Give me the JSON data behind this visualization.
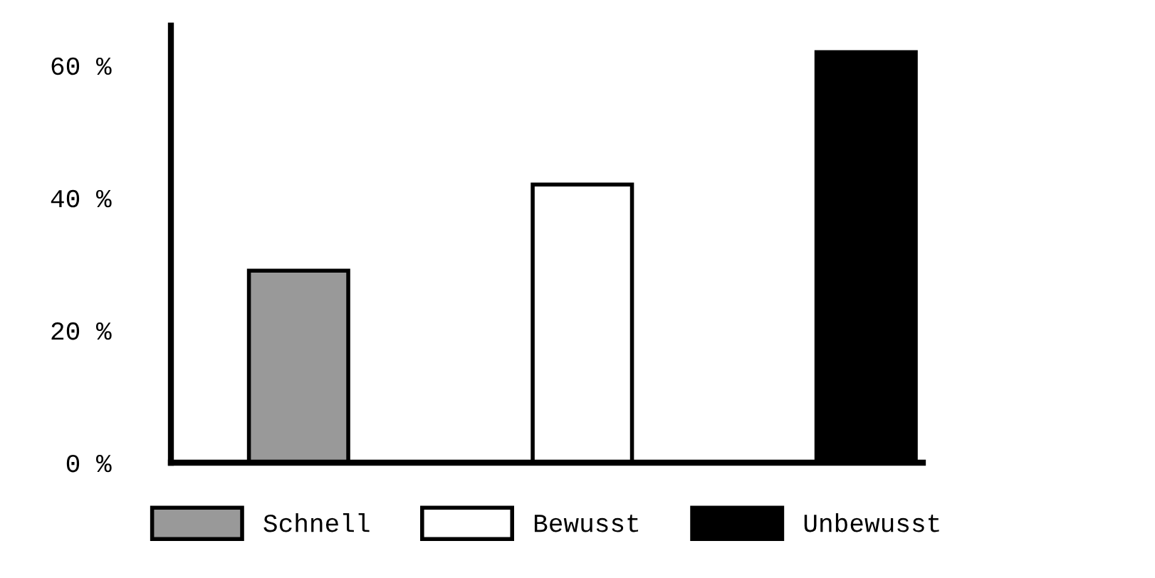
{
  "chart_data": {
    "type": "bar",
    "categories": [
      null,
      null,
      null
    ],
    "series": [
      {
        "name": "Schnell",
        "color": "#999999",
        "values": [
          29,
          null,
          null
        ]
      },
      {
        "name": "Bewusst",
        "color": "#ffffff",
        "values": [
          null,
          42,
          null
        ]
      },
      {
        "name": "Unbewusst",
        "color": "#000000",
        "values": [
          null,
          null,
          62
        ]
      }
    ],
    "ylim": [
      0,
      66
    ],
    "yticks": [
      {
        "value": 0,
        "label": "0 %"
      },
      {
        "value": 20,
        "label": "20 %"
      },
      {
        "value": 40,
        "label": "40 %"
      },
      {
        "value": 60,
        "label": "60 %"
      }
    ],
    "grid": false,
    "legend": "bottom"
  }
}
